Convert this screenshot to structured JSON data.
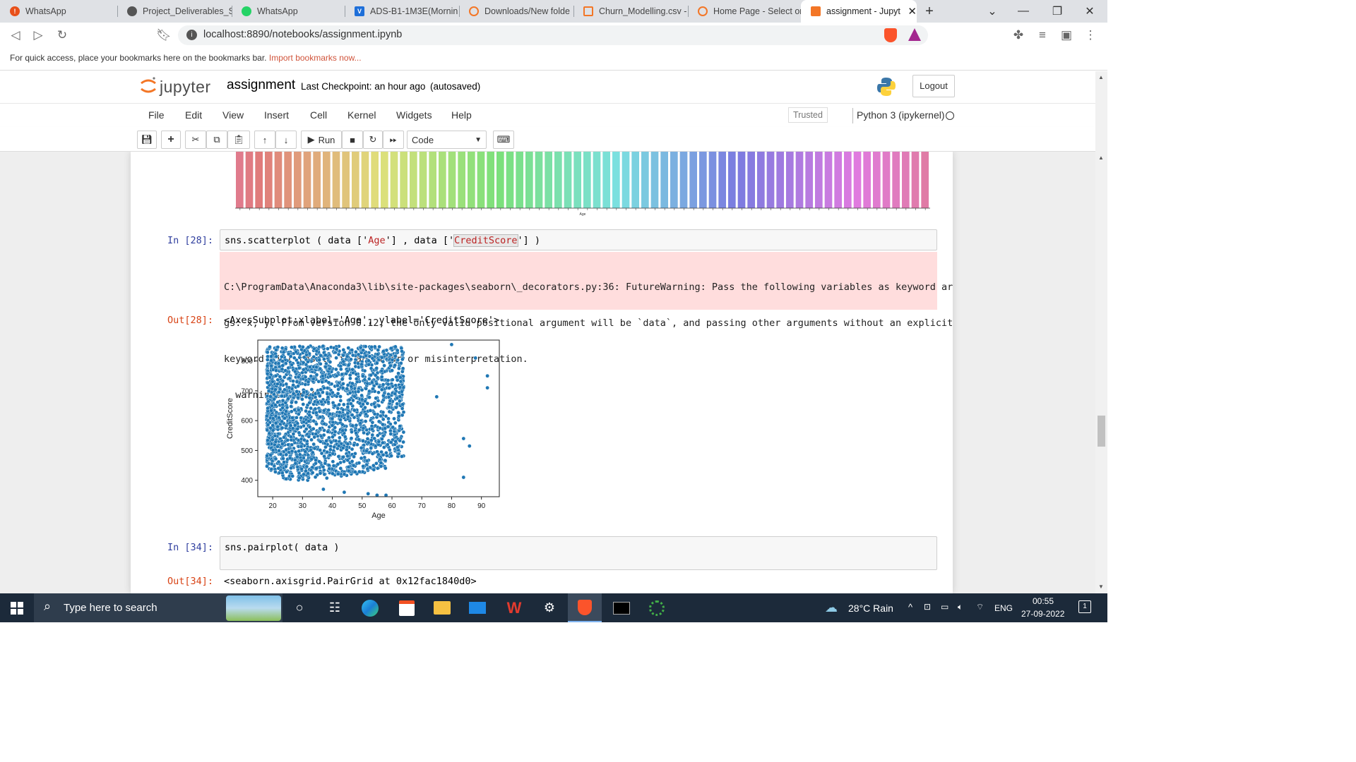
{
  "browser": {
    "tabs": [
      {
        "label": "WhatsApp",
        "icon": "alert-icon",
        "color": "#e8501a"
      },
      {
        "label": "Project_Deliverables_St",
        "icon": "globe-icon",
        "color": "#555555"
      },
      {
        "label": "WhatsApp",
        "icon": "whatsapp-icon",
        "color": "#25d366"
      },
      {
        "label": "ADS-B1-1M3E(Mornin",
        "icon": "v-icon",
        "color": "#1e6fd9"
      },
      {
        "label": "Downloads/New folde",
        "icon": "jupyter-icon",
        "color": "#f37626"
      },
      {
        "label": "Churn_Modelling.csv -",
        "icon": "file-icon",
        "color": "#f37626"
      },
      {
        "label": "Home Page - Select or",
        "icon": "jupyter-icon",
        "color": "#f37626"
      },
      {
        "label": "assignment - Jupyt",
        "icon": "notebook-icon",
        "color": "#f37626"
      }
    ],
    "url": "localhost:8890/notebooks/assignment.ipynb",
    "bookmarks_hint": "For quick access, place your bookmarks here on the bookmarks bar.",
    "bookmarks_link": "Import bookmarks now..."
  },
  "jupyter": {
    "logo_text": "jupyter",
    "notebook_name": "assignment",
    "checkpoint": "Last Checkpoint: an hour ago",
    "autosaved": "(autosaved)",
    "logout": "Logout",
    "menus": [
      "File",
      "Edit",
      "View",
      "Insert",
      "Cell",
      "Kernel",
      "Widgets",
      "Help"
    ],
    "trusted": "Trusted",
    "kernel": "Python 3 (ipykernel)",
    "run_label": "Run",
    "cell_type": "Code"
  },
  "cells": {
    "c28_prompt_in": "In [28]:",
    "c28_code_a": "sns.scatterplot ( data ['",
    "c28_code_b": "Age",
    "c28_code_c": "'] , data ['",
    "c28_code_d": "CreditScore",
    "c28_code_e": "'] )",
    "c28_stderr_1": "C:\\ProgramData\\Anaconda3\\lib\\site-packages\\seaborn\\_decorators.py:36: FutureWarning: Pass the following variables as keyword ar",
    "c28_stderr_2": "gs: x, y. From version 0.12, the only valid positional argument will be `data`, and passing other arguments without an explicit",
    "c28_stderr_3": "keyword will result in an error or misinterpretation.",
    "c28_stderr_4": "  warnings.warn(",
    "c28_prompt_out": "Out[28]:",
    "c28_out": "<AxesSubplot:xlabel='Age', ylabel='CreditScore'>",
    "c34_prompt_in": "In [34]:",
    "c34_code": "sns.pairplot( data )",
    "c34_prompt_out": "Out[34]:",
    "c34_out": "<seaborn.axisgrid.PairGrid at 0x12fac1840d0>"
  },
  "chart_data": [
    {
      "type": "bar",
      "note_visible": "partial bar chart cut off at top; ~72 rainbow bars of equal height",
      "bar_count": 72,
      "xlabel": "Age",
      "palette": "husl"
    },
    {
      "type": "scatter",
      "xlabel": "Age",
      "ylabel": "CreditScore",
      "xticks": [
        20,
        30,
        40,
        50,
        60,
        70,
        80,
        90
      ],
      "yticks": [
        400,
        500,
        600,
        700,
        800
      ],
      "xlim": [
        15,
        96
      ],
      "ylim": [
        345,
        870
      ],
      "color": "#1f77b4",
      "dense_region": {
        "x": [
          18,
          62
        ],
        "y": [
          400,
          850
        ]
      },
      "outliers": [
        [
          92,
          750
        ],
        [
          92,
          710
        ],
        [
          88,
          810
        ],
        [
          84,
          540
        ],
        [
          86,
          515
        ],
        [
          84,
          410
        ],
        [
          80,
          855
        ],
        [
          75,
          680
        ],
        [
          37,
          370
        ],
        [
          44,
          360
        ],
        [
          52,
          355
        ],
        [
          55,
          350
        ],
        [
          58,
          350
        ]
      ]
    }
  ],
  "taskbar": {
    "search_placeholder": "Type here to search",
    "weather": "28°C  Rain",
    "lang": "ENG",
    "time": "00:55",
    "date": "27-09-2022",
    "notifications": "1"
  }
}
